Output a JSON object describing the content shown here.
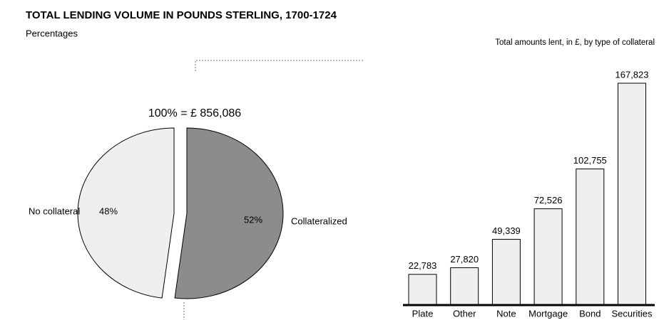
{
  "chart_data": [
    {
      "type": "pie",
      "title": "TOTAL LENDING VOLUME IN POUNDS STERLING, 1700-1724",
      "subtitle": "Percentages",
      "annotation": "100% = £ 856,086",
      "categories": [
        "No collateral",
        "Collateralized"
      ],
      "values": [
        48,
        52
      ],
      "value_labels": [
        "48%",
        "52%"
      ],
      "colors": [
        "#efefef",
        "#8c8c8c"
      ]
    },
    {
      "type": "bar",
      "title": "Total amounts lent, in £, by type of collateral",
      "categories": [
        "Plate",
        "Other",
        "Note",
        "Mortgage",
        "Bond",
        "Securities"
      ],
      "values": [
        22783,
        27820,
        49339,
        72526,
        102755,
        167823
      ],
      "value_labels": [
        "22,783",
        "27,820",
        "49,339",
        "72,526",
        "102,755",
        "167,823"
      ],
      "color": "#efefef"
    }
  ]
}
